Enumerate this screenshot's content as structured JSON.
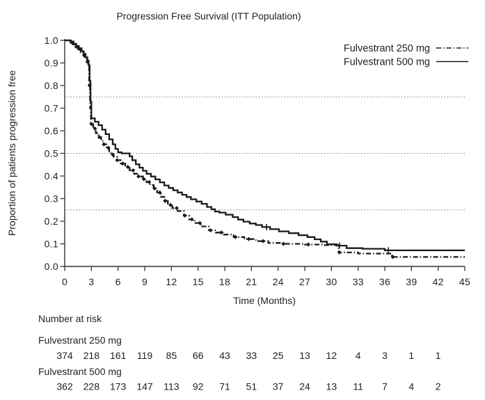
{
  "chart_data": {
    "type": "line",
    "subtype": "kaplan-meier-step",
    "title": "Progression Free Survival (ITT Population)",
    "xlabel": "Time (Months)",
    "ylabel": "Proportion of patients progression free",
    "xlim": [
      0,
      45
    ],
    "ylim": [
      0.0,
      1.0
    ],
    "x_ticks": [
      0,
      3,
      6,
      9,
      12,
      15,
      18,
      21,
      24,
      27,
      30,
      33,
      36,
      39,
      42,
      45
    ],
    "y_tick_labels": [
      "0.0",
      "0.1",
      "0.2",
      "0.3",
      "0.4",
      "0.5",
      "0.6",
      "0.7",
      "0.8",
      "0.9",
      "1.0"
    ],
    "reference_lines_y": [
      0.25,
      0.5,
      0.75
    ],
    "grid": "dotted-horizontal-reference-only",
    "legend_position": "top-right-inside",
    "line_color": "#1a1a1a",
    "series": [
      {
        "name": "Fulvestrant 250 mg",
        "style": "dash-dot",
        "marker": "diamond",
        "points": [
          [
            0,
            1.0
          ],
          [
            0.6,
            0.992
          ],
          [
            0.9,
            0.982
          ],
          [
            1.2,
            0.972
          ],
          [
            1.5,
            0.96
          ],
          [
            1.8,
            0.947
          ],
          [
            2.1,
            0.933
          ],
          [
            2.3,
            0.92
          ],
          [
            2.5,
            0.905
          ],
          [
            2.65,
            0.885
          ],
          [
            2.75,
            0.8
          ],
          [
            2.85,
            0.7
          ],
          [
            2.95,
            0.63
          ],
          [
            3.2,
            0.61
          ],
          [
            3.5,
            0.59
          ],
          [
            3.8,
            0.572
          ],
          [
            4.1,
            0.555
          ],
          [
            4.4,
            0.54
          ],
          [
            4.7,
            0.525
          ],
          [
            5.0,
            0.51
          ],
          [
            5.2,
            0.495
          ],
          [
            5.5,
            0.485
          ],
          [
            5.9,
            0.47
          ],
          [
            6.3,
            0.455
          ],
          [
            6.8,
            0.44
          ],
          [
            7.3,
            0.425
          ],
          [
            7.8,
            0.41
          ],
          [
            8.3,
            0.398
          ],
          [
            8.8,
            0.386
          ],
          [
            9.2,
            0.373
          ],
          [
            9.6,
            0.36
          ],
          [
            10.0,
            0.345
          ],
          [
            10.4,
            0.327
          ],
          [
            10.8,
            0.308
          ],
          [
            11.2,
            0.29
          ],
          [
            11.6,
            0.272
          ],
          [
            12.1,
            0.258
          ],
          [
            12.7,
            0.245
          ],
          [
            13.4,
            0.225
          ],
          [
            14.0,
            0.208
          ],
          [
            14.6,
            0.192
          ],
          [
            15.3,
            0.177
          ],
          [
            16.2,
            0.16
          ],
          [
            17.0,
            0.15
          ],
          [
            17.9,
            0.141
          ],
          [
            19.0,
            0.13
          ],
          [
            20.2,
            0.121
          ],
          [
            21.5,
            0.112
          ],
          [
            22.9,
            0.104
          ],
          [
            24.5,
            0.1
          ],
          [
            27.0,
            0.097
          ],
          [
            29.0,
            0.094
          ],
          [
            30.8,
            0.062
          ],
          [
            33.0,
            0.057
          ],
          [
            36.8,
            0.042
          ],
          [
            45,
            0.042
          ]
        ],
        "marker_times": [
          0.75,
          1.3,
          1.75,
          2.2,
          2.55,
          2.8,
          3.0,
          3.4,
          3.9,
          4.4,
          4.9,
          5.4,
          5.9,
          6.5,
          7.1,
          7.7,
          8.3,
          8.9,
          9.5,
          10.1,
          10.7,
          11.3,
          11.9,
          12.6,
          13.5,
          14.3,
          15.2,
          16.4,
          17.6,
          19.2,
          20.7,
          22.3,
          24.6,
          27.4,
          30.9,
          36.9
        ]
      },
      {
        "name": "Fulvestrant 500 mg",
        "style": "solid",
        "marker": "censor-tick",
        "points": [
          [
            0,
            1.0
          ],
          [
            0.7,
            0.995
          ],
          [
            1.0,
            0.985
          ],
          [
            1.3,
            0.975
          ],
          [
            1.6,
            0.965
          ],
          [
            1.9,
            0.952
          ],
          [
            2.15,
            0.94
          ],
          [
            2.35,
            0.925
          ],
          [
            2.55,
            0.91
          ],
          [
            2.7,
            0.89
          ],
          [
            2.8,
            0.82
          ],
          [
            2.9,
            0.73
          ],
          [
            3.0,
            0.655
          ],
          [
            3.4,
            0.64
          ],
          [
            3.8,
            0.625
          ],
          [
            4.2,
            0.605
          ],
          [
            4.6,
            0.585
          ],
          [
            5.0,
            0.562
          ],
          [
            5.4,
            0.54
          ],
          [
            5.7,
            0.52
          ],
          [
            6.0,
            0.505
          ],
          [
            6.4,
            0.5
          ],
          [
            7.3,
            0.487
          ],
          [
            7.6,
            0.47
          ],
          [
            8.0,
            0.452
          ],
          [
            8.4,
            0.437
          ],
          [
            8.8,
            0.423
          ],
          [
            9.2,
            0.41
          ],
          [
            9.7,
            0.398
          ],
          [
            10.2,
            0.385
          ],
          [
            10.7,
            0.372
          ],
          [
            11.2,
            0.358
          ],
          [
            11.7,
            0.347
          ],
          [
            12.2,
            0.337
          ],
          [
            12.7,
            0.327
          ],
          [
            13.2,
            0.317
          ],
          [
            13.7,
            0.307
          ],
          [
            14.2,
            0.297
          ],
          [
            14.8,
            0.287
          ],
          [
            15.4,
            0.277
          ],
          [
            16.0,
            0.263
          ],
          [
            16.5,
            0.253
          ],
          [
            16.9,
            0.243
          ],
          [
            17.4,
            0.238
          ],
          [
            18.1,
            0.229
          ],
          [
            18.9,
            0.218
          ],
          [
            19.5,
            0.207
          ],
          [
            20.1,
            0.198
          ],
          [
            20.8,
            0.19
          ],
          [
            21.5,
            0.183
          ],
          [
            22.2,
            0.174
          ],
          [
            23.1,
            0.165
          ],
          [
            24.1,
            0.155
          ],
          [
            25.2,
            0.147
          ],
          [
            26.3,
            0.138
          ],
          [
            27.3,
            0.13
          ],
          [
            28.1,
            0.12
          ],
          [
            28.8,
            0.11
          ],
          [
            29.5,
            0.098
          ],
          [
            30.6,
            0.092
          ],
          [
            31.7,
            0.081
          ],
          [
            33.5,
            0.078
          ],
          [
            36.0,
            0.071
          ],
          [
            45,
            0.071
          ]
        ],
        "marker_times": [
          22.7,
          30.9,
          36.4
        ]
      }
    ]
  },
  "number_at_risk": {
    "heading": "Number at risk",
    "timepoints": [
      0,
      3,
      6,
      9,
      12,
      15,
      18,
      21,
      24,
      27,
      30,
      33,
      36,
      39,
      42
    ],
    "rows": [
      {
        "label": "Fulvestrant 250 mg",
        "values": [
          374,
          218,
          161,
          119,
          85,
          66,
          43,
          33,
          25,
          13,
          12,
          4,
          3,
          1,
          1
        ]
      },
      {
        "label": "Fulvestrant 500 mg",
        "values": [
          362,
          228,
          173,
          147,
          113,
          92,
          71,
          51,
          37,
          24,
          13,
          11,
          7,
          4,
          2
        ]
      }
    ]
  },
  "colors": {
    "curve": "#1a1a1a",
    "axis": "#333333",
    "reference_line": "#777777",
    "text": "#222222",
    "background": "#ffffff"
  }
}
